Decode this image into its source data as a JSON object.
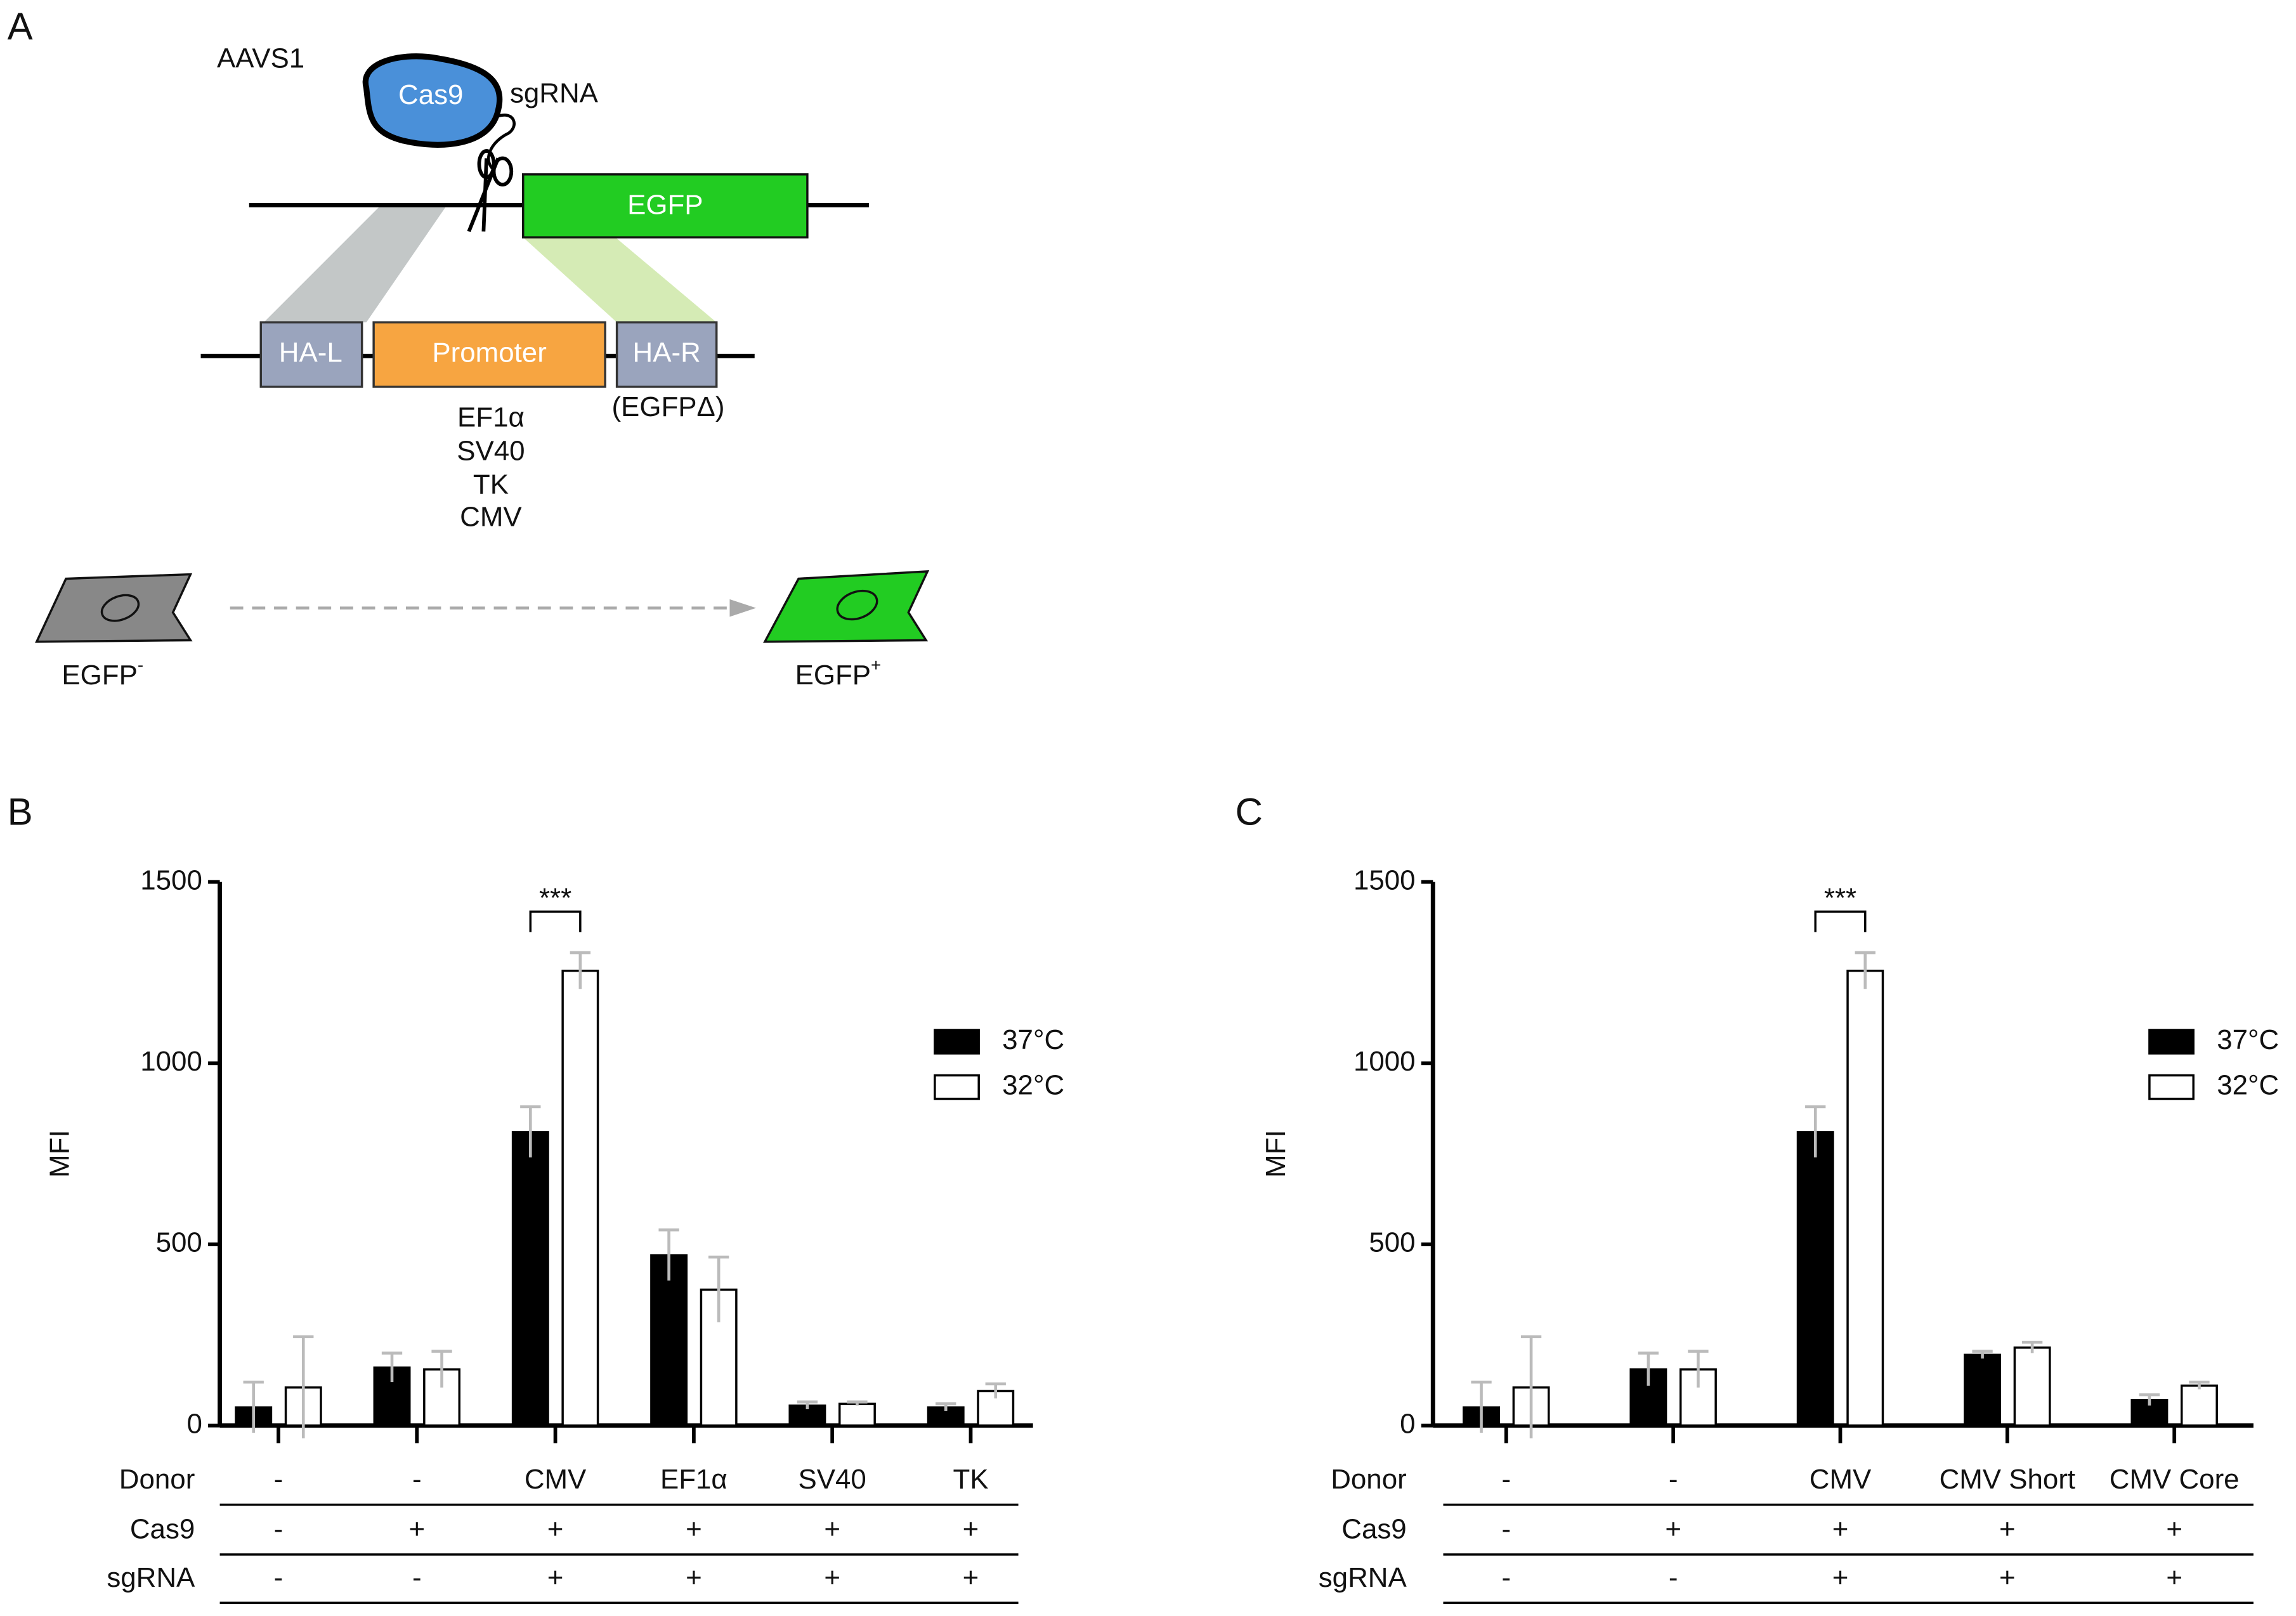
{
  "panels": [
    "A",
    "B",
    "C"
  ],
  "diagram": {
    "locus": "AAVS1",
    "cas9": "Cas9",
    "sgrna": "sgRNA",
    "reporter": "EGFP",
    "arm_left": "HA-L",
    "promoter": "Promoter",
    "arm_right": "HA-R",
    "arm_right_note": "(EGFPΔ)",
    "promoters": [
      "EF1α",
      "SV40",
      "TK",
      "CMV"
    ],
    "cell_before": {
      "text": "EGFP",
      "sup": "-"
    },
    "cell_after": {
      "text": "EGFP",
      "sup": "+"
    }
  },
  "chart_data": [
    {
      "type": "bar",
      "y_label": "MFI",
      "ylim": [
        0,
        1500
      ],
      "yticks": [
        0,
        500,
        1000,
        1500
      ],
      "row_labels": [
        "Donor",
        "Cas9",
        "sgRNA"
      ],
      "categories": [
        "-",
        "-",
        "CMV",
        "EF1α",
        "SV40",
        "TK"
      ],
      "cas9": [
        "-",
        "+",
        "+",
        "+",
        "+",
        "+"
      ],
      "sgrna": [
        "-",
        "-",
        "+",
        "+",
        "+",
        "+"
      ],
      "series": [
        {
          "name": "37°C",
          "color": "#000000",
          "values": [
            50,
            160,
            810,
            470,
            55,
            50
          ],
          "errors": [
            70,
            40,
            70,
            70,
            10,
            10
          ]
        },
        {
          "name": "32°C",
          "color": "#ffffff",
          "values": [
            105,
            155,
            1255,
            375,
            60,
            95
          ],
          "errors": [
            140,
            50,
            50,
            90,
            5,
            20
          ]
        }
      ],
      "annotations": [
        {
          "text": "***",
          "category": 2
        }
      ]
    },
    {
      "type": "bar",
      "y_label": "MFI",
      "ylim": [
        0,
        1500
      ],
      "yticks": [
        0,
        500,
        1000,
        1500
      ],
      "row_labels": [
        "Donor",
        "Cas9",
        "sgRNA"
      ],
      "categories": [
        "-",
        "-",
        "CMV",
        "CMV Short",
        "CMV Core"
      ],
      "cas9": [
        "-",
        "+",
        "+",
        "+",
        "+"
      ],
      "sgrna": [
        "-",
        "-",
        "+",
        "+",
        "+"
      ],
      "series": [
        {
          "name": "37°C",
          "color": "#000000",
          "values": [
            50,
            155,
            810,
            195,
            70
          ],
          "errors": [
            70,
            45,
            70,
            10,
            15
          ]
        },
        {
          "name": "32°C",
          "color": "#ffffff",
          "values": [
            105,
            155,
            1255,
            215,
            110
          ],
          "errors": [
            140,
            50,
            50,
            15,
            10
          ]
        }
      ],
      "annotations": [
        {
          "text": "***",
          "category": 2
        }
      ]
    }
  ]
}
